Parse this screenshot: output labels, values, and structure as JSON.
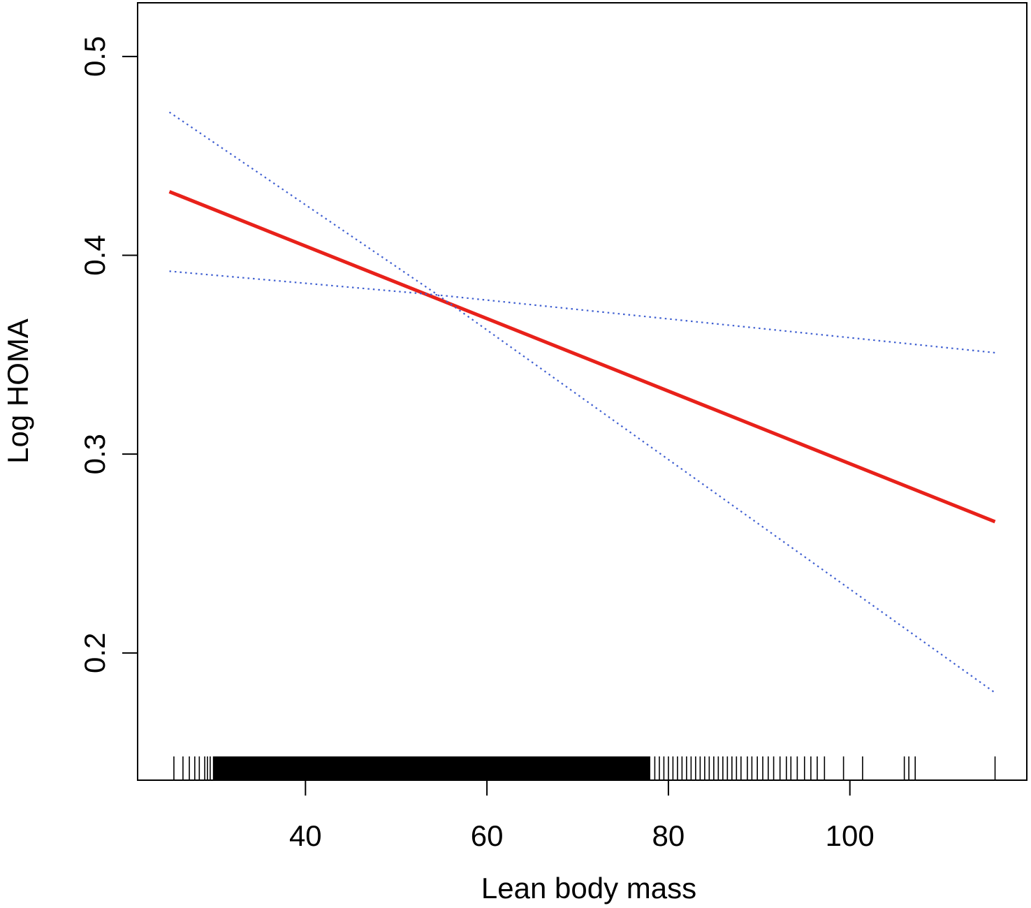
{
  "chart_data": {
    "type": "line",
    "xlabel": "Lean body mass",
    "ylabel": "Log HOMA",
    "xlim": [
      21.5,
      119.5
    ],
    "ylim": [
      0.136,
      0.527
    ],
    "x_ticks": [
      40,
      60,
      80,
      100
    ],
    "y_ticks": [
      0.2,
      0.3,
      0.4,
      0.5
    ],
    "x_tick_labels": [
      "40",
      "60",
      "80",
      "100"
    ],
    "y_tick_labels": [
      "0.2",
      "0.3",
      "0.4",
      "0.5"
    ],
    "grid": false,
    "series": [
      {
        "role": "fit",
        "style": "solid",
        "color": "#e8211a",
        "x": [
          25,
          116
        ],
        "y": [
          0.432,
          0.266
        ]
      },
      {
        "role": "upper-ci",
        "style": "dotted",
        "color": "#3f5fd1",
        "x": [
          25,
          54.6,
          116
        ],
        "y": [
          0.472,
          0.38,
          0.18
        ]
      },
      {
        "role": "lower-ci",
        "style": "dotted",
        "color": "#3f5fd1",
        "x": [
          25,
          54.6,
          116
        ],
        "y": [
          0.392,
          0.38,
          0.351
        ]
      }
    ],
    "rug": {
      "color": "#000000",
      "x_dense_ranges": [
        [
          29.8,
          78
        ]
      ],
      "x_sparse": [
        25.5,
        26.5,
        27.2,
        27.8,
        28.3,
        28.9,
        29.2,
        29.5,
        78.5,
        79,
        79.5,
        80,
        80.5,
        81,
        81.5,
        82,
        82.5,
        83,
        83.5,
        84,
        84.5,
        85,
        85.5,
        86,
        86.5,
        87,
        87.5,
        88,
        88.7,
        89.2,
        89.8,
        90.4,
        91,
        91.6,
        92.3,
        93,
        93.5,
        94.2,
        95,
        95.7,
        96.4,
        97.2,
        99.3,
        101.4,
        106,
        106.5,
        107.2,
        116
      ]
    }
  }
}
